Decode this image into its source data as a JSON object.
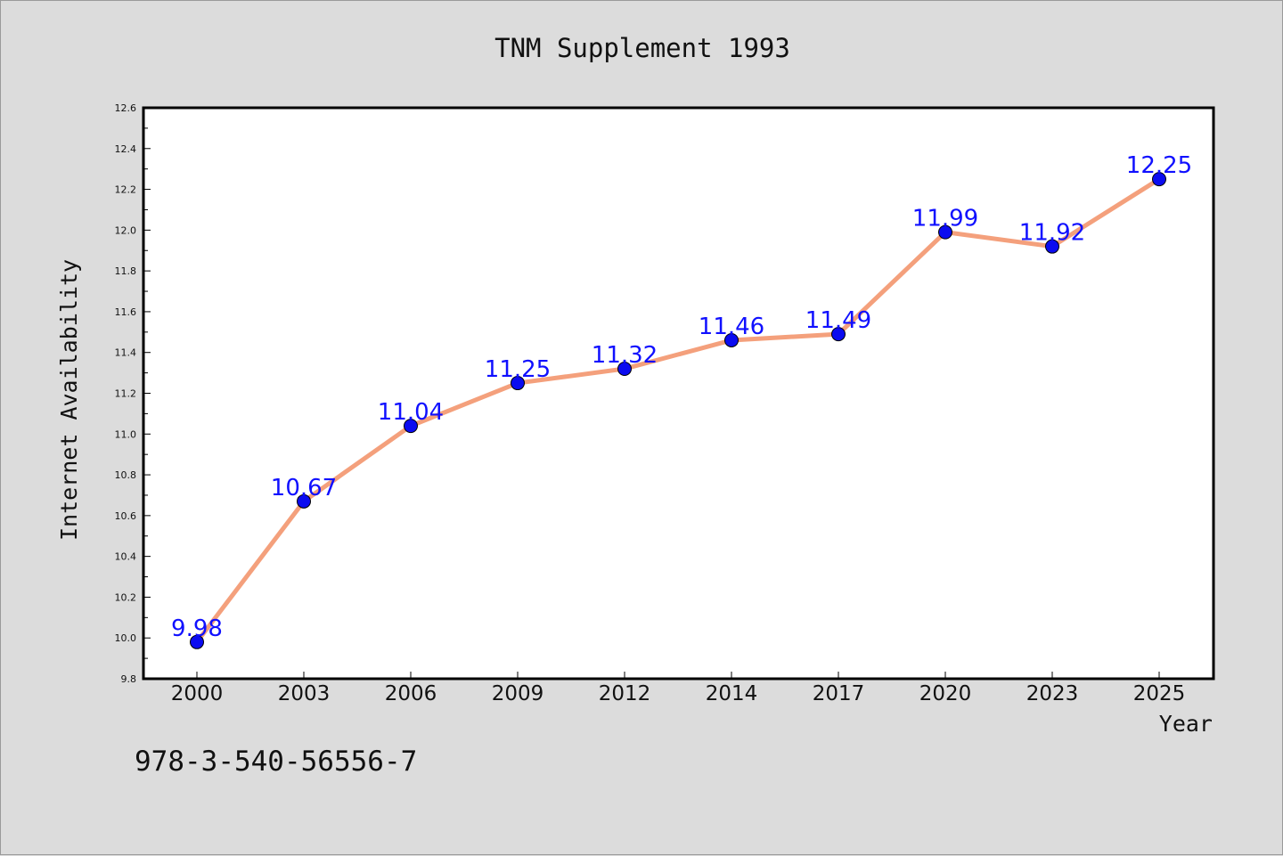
{
  "chart_data": {
    "type": "line",
    "title": "TNM Supplement 1993",
    "xlabel": "Year",
    "ylabel": "Internet Availability",
    "categories": [
      "2000",
      "2003",
      "2006",
      "2009",
      "2012",
      "2014",
      "2017",
      "2020",
      "2023",
      "2025"
    ],
    "series": [
      {
        "values": [
          9.98,
          10.67,
          11.04,
          11.25,
          11.32,
          11.46,
          11.49,
          11.99,
          11.92,
          12.25
        ],
        "line_color": "#f4a07c",
        "marker_color": "#0b0bf0",
        "label_color": "#1010ff"
      }
    ],
    "data_labels": [
      "9.98",
      "10.67",
      "11.04",
      "11.25",
      "11.32",
      "11.46",
      "11.49",
      "11.99",
      "11.92",
      "12.25"
    ],
    "ylim": [
      9.8,
      12.6
    ],
    "yticks": [
      "9.8",
      "10.0",
      "10.2",
      "10.4",
      "10.6",
      "10.8",
      "11.0",
      "11.2",
      "11.4",
      "11.6",
      "11.8",
      "12.0",
      "12.2",
      "12.4",
      "12.6"
    ],
    "grid": false,
    "legend": "none"
  },
  "footer": {
    "code": "978-3-540-56556-7"
  }
}
